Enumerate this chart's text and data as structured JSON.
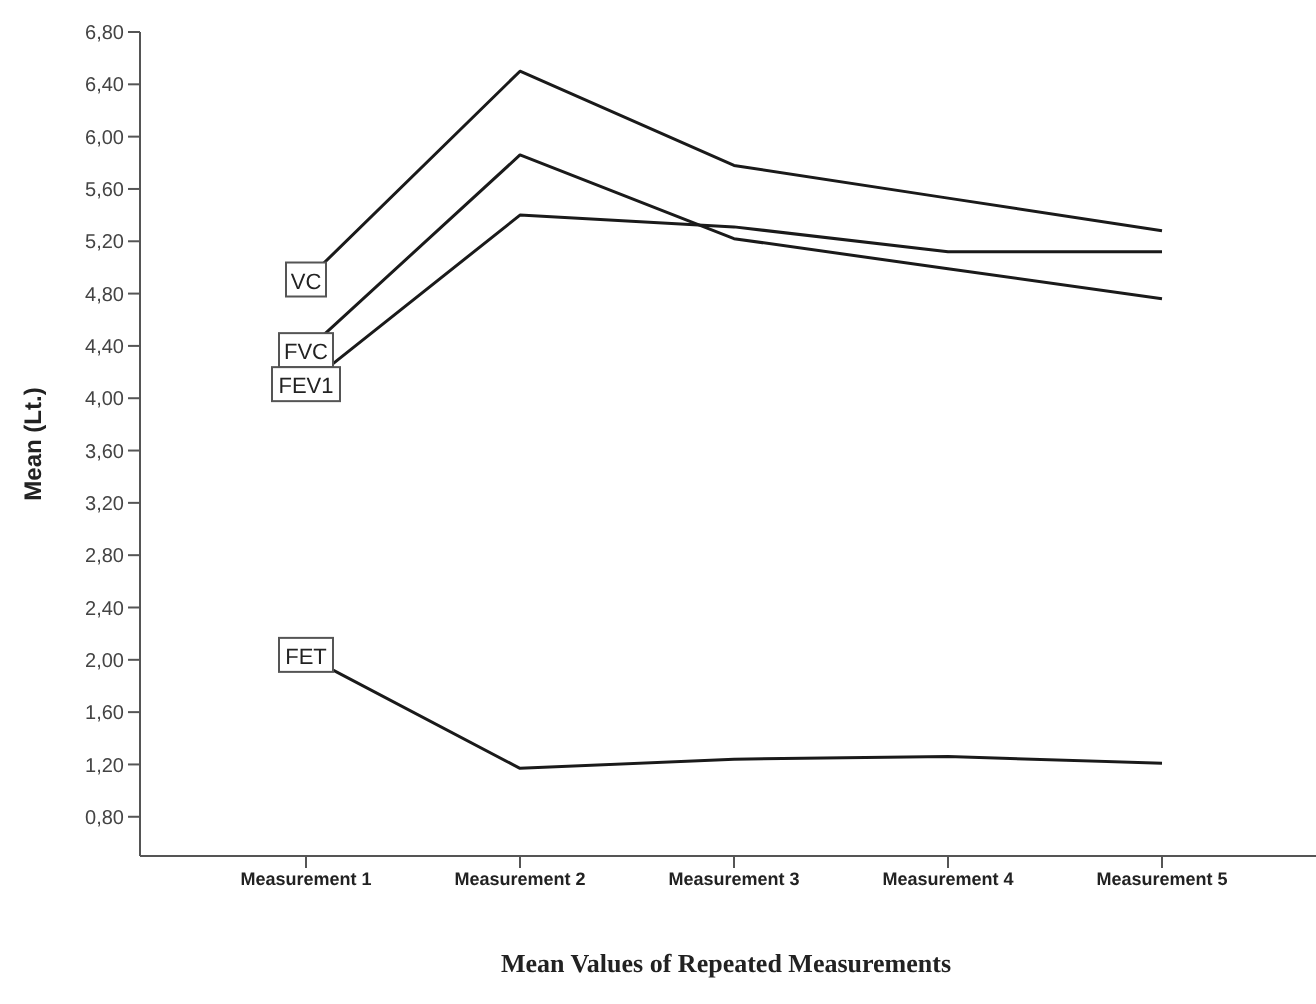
{
  "chart_data": {
    "type": "line",
    "xlabel": "Mean Values of Repeated Measurements",
    "ylabel": "Mean (Lt.)",
    "categories": [
      "Measurement 1",
      "Measurement 2",
      "Measurement 3",
      "Measurement 4",
      "Measurement 5"
    ],
    "series": [
      {
        "name": "VC",
        "color": "#1a1a1a",
        "values": [
          4.9,
          6.5,
          5.78,
          5.53,
          5.28
        ]
      },
      {
        "name": "FVC",
        "color": "#1a1a1a",
        "values": [
          4.36,
          5.86,
          5.22,
          4.99,
          4.76
        ]
      },
      {
        "name": "FEV1",
        "color": "#1a1a1a",
        "values": [
          4.1,
          5.4,
          5.31,
          5.12,
          5.12
        ]
      },
      {
        "name": "FET",
        "color": "#1a1a1a",
        "values": [
          2.03,
          1.17,
          1.24,
          1.26,
          1.21
        ]
      }
    ],
    "ylim": [
      0.5,
      6.8
    ],
    "yticks": [
      {
        "value": 0.8,
        "label": "0,80"
      },
      {
        "value": 1.2,
        "label": "1,20"
      },
      {
        "value": 1.6,
        "label": "1,60"
      },
      {
        "value": 2.0,
        "label": "2,00"
      },
      {
        "value": 2.4,
        "label": "2,40"
      },
      {
        "value": 2.8,
        "label": "2,80"
      },
      {
        "value": 3.2,
        "label": "3,20"
      },
      {
        "value": 3.6,
        "label": "3,60"
      },
      {
        "value": 4.0,
        "label": "4,00"
      },
      {
        "value": 4.4,
        "label": "4,40"
      },
      {
        "value": 4.8,
        "label": "4,80"
      },
      {
        "value": 5.2,
        "label": "5,20"
      },
      {
        "value": 5.6,
        "label": "5,60"
      },
      {
        "value": 6.0,
        "label": "6,00"
      },
      {
        "value": 6.4,
        "label": "6,40"
      },
      {
        "value": 6.8,
        "label": "6,80"
      }
    ],
    "grid": false,
    "legend": false,
    "marker": "none",
    "line_style": "solid"
  }
}
